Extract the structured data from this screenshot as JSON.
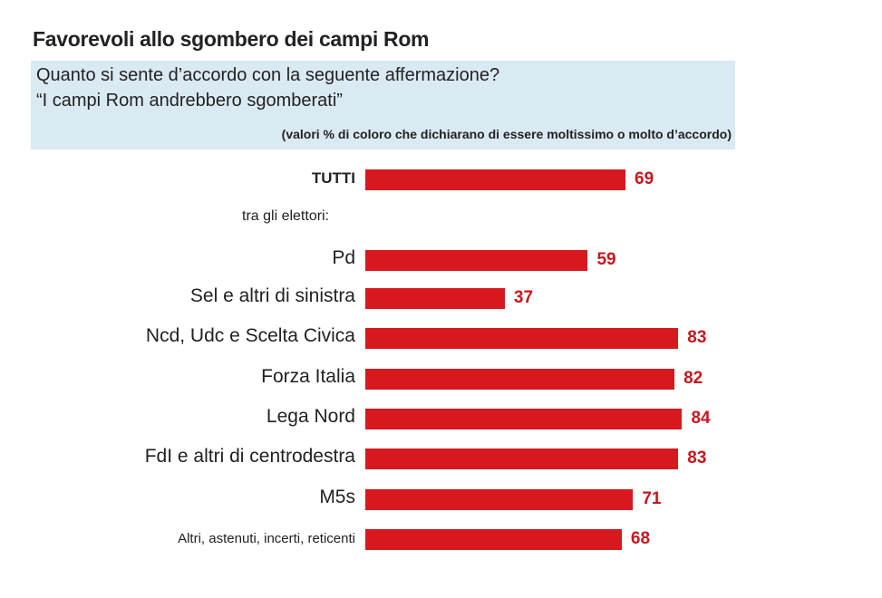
{
  "chart_data": {
    "type": "bar",
    "orientation": "horizontal",
    "title": "Favorevoli allo sgombero dei campi Rom",
    "subtitle_lines": [
      "Quanto si sente d’accordo con la seguente affermazione?",
      "“I campi Rom  andrebbero sgomberati”"
    ],
    "note": "(valori % di coloro che dichiarano di essere moltissimo o molto d’accordo)",
    "group_label": "tra gli elettori:",
    "categories": [
      "TUTTI",
      "Pd",
      "Sel e altri di sinistra",
      "Ncd, Udc e Scelta Civica",
      "Forza Italia",
      "Lega Nord",
      "FdI e altri di centrodestra",
      "M5s",
      "Altri, astenuti, incerti, reticenti"
    ],
    "values": [
      69,
      59,
      37,
      83,
      82,
      84,
      83,
      71,
      68
    ],
    "xlabel": "",
    "ylabel": "",
    "xlim": [
      0,
      100
    ],
    "grid": false,
    "bar_color": "#d7181f",
    "label_color": "#c8161d"
  }
}
